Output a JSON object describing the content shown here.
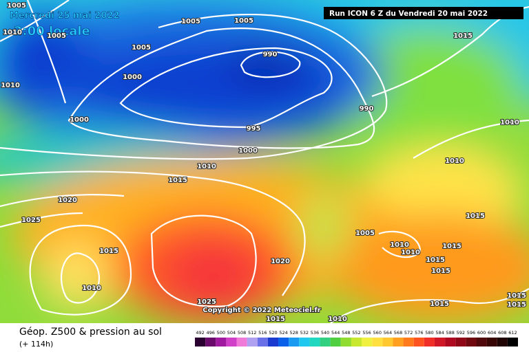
{
  "header": {
    "date": "Mercredi 25 mai 2022",
    "time": "2:00 locale",
    "run": "Run ICON 6 Z du Vendredi 20 mai 2022"
  },
  "map": {
    "isobar_labels": [
      1005,
      1010,
      1005,
      1005,
      1005,
      1005,
      990,
      1015,
      1010,
      1000,
      990,
      1000,
      995,
      1010,
      1000,
      1010,
      1010,
      1015,
      1020,
      1025,
      1015,
      1005,
      1010,
      1010,
      1015,
      1015,
      1015,
      1015,
      1020,
      1010,
      1025,
      1015,
      1015,
      1015,
      1015,
      1010
    ],
    "copyright": "Copyright © 2022 Meteociel.fr"
  },
  "footer": {
    "title": "Géop. Z500 & pression au sol",
    "lead_time": "(+ 114h)",
    "scale_labels": [
      492,
      496,
      500,
      504,
      508,
      512,
      516,
      520,
      524,
      528,
      532,
      536,
      540,
      544,
      548,
      552,
      556,
      560,
      564,
      568,
      572,
      576,
      580,
      584,
      588,
      592,
      596,
      600,
      604,
      608,
      612
    ]
  }
}
